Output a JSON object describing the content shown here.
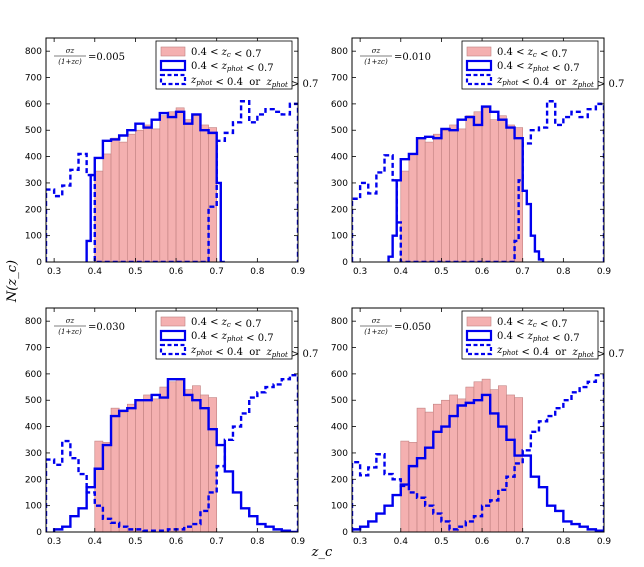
{
  "figure": {
    "ylabel": "N(z_c)",
    "xlabel": "z_c"
  },
  "colors": {
    "fill": "#f4b0b0",
    "fill_edge": "#c08080",
    "line": "#0000ee"
  },
  "chart_data": [
    {
      "type": "histogram",
      "annotation": "σz/(1+zc) = 0.005",
      "xlim": [
        0.28,
        0.9
      ],
      "ylim": [
        0,
        850
      ],
      "xticks": [
        "0.3",
        "0.4",
        "0.5",
        "0.6",
        "0.7",
        "0.8",
        "0.9"
      ],
      "yticks": [
        "0",
        "100",
        "200",
        "300",
        "400",
        "500",
        "600",
        "700",
        "800"
      ],
      "legend_placement": "top-right",
      "series": [
        {
          "name": "0.4 < z_c < 0.7",
          "style": "fill",
          "x_edges": [
            0.4,
            0.42,
            0.44,
            0.46,
            0.48,
            0.5,
            0.52,
            0.54,
            0.56,
            0.58,
            0.6,
            0.62,
            0.64,
            0.66,
            0.68,
            0.7
          ],
          "values": [
            345,
            410,
            470,
            455,
            485,
            500,
            520,
            505,
            555,
            570,
            585,
            540,
            555,
            520,
            510
          ]
        },
        {
          "name": "0.4 < z_phot < 0.7",
          "style": "solid",
          "x_edges": [
            0.38,
            0.39,
            0.4,
            0.42,
            0.44,
            0.46,
            0.48,
            0.5,
            0.52,
            0.54,
            0.56,
            0.58,
            0.6,
            0.62,
            0.64,
            0.66,
            0.68,
            0.7,
            0.71,
            0.72
          ],
          "values": [
            80,
            330,
            395,
            460,
            465,
            480,
            500,
            525,
            510,
            540,
            565,
            550,
            570,
            525,
            560,
            500,
            490,
            300,
            0
          ]
        },
        {
          "name": "z_phot < 0.4  or  z_phot > 0.7",
          "style": "dashed",
          "x_edges": [
            0.28,
            0.3,
            0.32,
            0.34,
            0.36,
            0.38,
            0.4,
            0.68,
            0.7,
            0.72,
            0.74,
            0.76,
            0.78,
            0.8,
            0.82,
            0.84,
            0.86,
            0.88,
            0.9
          ],
          "values": [
            275,
            250,
            290,
            350,
            410,
            330,
            0,
            210,
            460,
            490,
            530,
            610,
            530,
            560,
            580,
            570,
            560,
            600
          ]
        }
      ]
    },
    {
      "type": "histogram",
      "annotation": "σz/(1+zc) = 0.010",
      "xlim": [
        0.28,
        0.9
      ],
      "ylim": [
        0,
        850
      ],
      "xticks": [
        "0.3",
        "0.4",
        "0.5",
        "0.6",
        "0.7",
        "0.8",
        "0.9"
      ],
      "yticks": [
        "0",
        "100",
        "200",
        "300",
        "400",
        "500",
        "600",
        "700",
        "800"
      ],
      "legend_placement": "top-right",
      "series": [
        {
          "name": "0.4 < z_c < 0.7",
          "style": "fill",
          "x_edges": [
            0.4,
            0.42,
            0.44,
            0.46,
            0.48,
            0.5,
            0.52,
            0.54,
            0.56,
            0.58,
            0.6,
            0.62,
            0.64,
            0.66,
            0.68,
            0.7
          ],
          "values": [
            345,
            410,
            470,
            455,
            485,
            500,
            520,
            505,
            555,
            570,
            585,
            540,
            555,
            520,
            510
          ]
        },
        {
          "name": "0.4 < z_phot < 0.7",
          "style": "solid",
          "x_edges": [
            0.37,
            0.38,
            0.39,
            0.4,
            0.42,
            0.44,
            0.46,
            0.48,
            0.5,
            0.52,
            0.54,
            0.56,
            0.58,
            0.6,
            0.62,
            0.64,
            0.66,
            0.68,
            0.7,
            0.71,
            0.72,
            0.73,
            0.74,
            0.75
          ],
          "values": [
            20,
            100,
            310,
            390,
            410,
            470,
            475,
            470,
            505,
            500,
            540,
            550,
            520,
            590,
            570,
            540,
            510,
            470,
            270,
            220,
            100,
            40,
            10
          ]
        },
        {
          "name": "z_phot < 0.4  or  z_phot > 0.7",
          "style": "dashed",
          "x_edges": [
            0.28,
            0.3,
            0.32,
            0.34,
            0.36,
            0.38,
            0.39,
            0.4,
            0.68,
            0.69,
            0.7,
            0.72,
            0.74,
            0.76,
            0.78,
            0.8,
            0.82,
            0.84,
            0.86,
            0.88,
            0.9
          ],
          "values": [
            240,
            300,
            260,
            340,
            405,
            310,
            150,
            0,
            80,
            310,
            450,
            500,
            510,
            610,
            520,
            550,
            570,
            550,
            580,
            600
          ]
        }
      ]
    },
    {
      "type": "histogram",
      "annotation": "σz/(1+zc) = 0.030",
      "xlim": [
        0.28,
        0.9
      ],
      "ylim": [
        0,
        850
      ],
      "xticks": [
        "0.3",
        "0.4",
        "0.5",
        "0.6",
        "0.7",
        "0.8",
        "0.9"
      ],
      "yticks": [
        "0",
        "100",
        "200",
        "300",
        "400",
        "500",
        "600",
        "700",
        "800"
      ],
      "legend_placement": "top-right",
      "series": [
        {
          "name": "0.4 < z_c < 0.7",
          "style": "fill",
          "x_edges": [
            0.4,
            0.42,
            0.44,
            0.46,
            0.48,
            0.5,
            0.52,
            0.54,
            0.56,
            0.58,
            0.6,
            0.62,
            0.64,
            0.66,
            0.68,
            0.7
          ],
          "values": [
            345,
            340,
            470,
            455,
            485,
            500,
            520,
            505,
            550,
            570,
            580,
            540,
            555,
            520,
            510
          ]
        },
        {
          "name": "0.4 < z_phot < 0.7",
          "style": "solid",
          "x_edges": [
            0.3,
            0.32,
            0.34,
            0.36,
            0.38,
            0.4,
            0.42,
            0.44,
            0.46,
            0.48,
            0.5,
            0.52,
            0.54,
            0.56,
            0.58,
            0.6,
            0.62,
            0.64,
            0.66,
            0.68,
            0.7,
            0.72,
            0.74,
            0.76,
            0.78,
            0.8,
            0.82,
            0.84,
            0.86,
            0.88,
            0.9
          ],
          "values": [
            10,
            20,
            60,
            90,
            170,
            240,
            330,
            440,
            460,
            470,
            500,
            500,
            520,
            510,
            580,
            580,
            520,
            500,
            470,
            390,
            330,
            230,
            150,
            90,
            60,
            30,
            20,
            10,
            5,
            0
          ]
        },
        {
          "name": "z_phot < 0.4  or  z_phot > 0.7",
          "style": "dashed",
          "x_edges": [
            0.28,
            0.3,
            0.32,
            0.34,
            0.36,
            0.38,
            0.4,
            0.42,
            0.44,
            0.46,
            0.48,
            0.5,
            0.52,
            0.54,
            0.56,
            0.58,
            0.6,
            0.62,
            0.64,
            0.66,
            0.68,
            0.7,
            0.72,
            0.74,
            0.76,
            0.78,
            0.8,
            0.82,
            0.84,
            0.86,
            0.88,
            0.9
          ],
          "values": [
            275,
            255,
            345,
            280,
            220,
            150,
            100,
            50,
            35,
            20,
            10,
            10,
            5,
            5,
            5,
            10,
            10,
            20,
            30,
            80,
            150,
            250,
            350,
            400,
            450,
            510,
            530,
            550,
            560,
            580,
            595
          ]
        }
      ]
    },
    {
      "type": "histogram",
      "annotation": "σz/(1+zc) = 0.050",
      "xlim": [
        0.28,
        0.9
      ],
      "ylim": [
        0,
        850
      ],
      "xticks": [
        "0.3",
        "0.4",
        "0.5",
        "0.6",
        "0.7",
        "0.8",
        "0.9"
      ],
      "yticks": [
        "0",
        "100",
        "200",
        "300",
        "400",
        "500",
        "600",
        "700",
        "800"
      ],
      "legend_placement": "top-right",
      "series": [
        {
          "name": "0.4 < z_c < 0.7",
          "style": "fill",
          "x_edges": [
            0.4,
            0.42,
            0.44,
            0.46,
            0.48,
            0.5,
            0.52,
            0.54,
            0.56,
            0.58,
            0.6,
            0.62,
            0.64,
            0.66,
            0.68,
            0.7
          ],
          "values": [
            345,
            340,
            470,
            455,
            485,
            500,
            520,
            505,
            550,
            570,
            580,
            540,
            555,
            520,
            510
          ]
        },
        {
          "name": "0.4 < z_phot < 0.7",
          "style": "solid",
          "x_edges": [
            0.28,
            0.3,
            0.32,
            0.34,
            0.36,
            0.38,
            0.4,
            0.42,
            0.44,
            0.46,
            0.48,
            0.5,
            0.52,
            0.54,
            0.56,
            0.58,
            0.6,
            0.62,
            0.64,
            0.66,
            0.68,
            0.7,
            0.72,
            0.74,
            0.76,
            0.78,
            0.8,
            0.82,
            0.84,
            0.86,
            0.88,
            0.9
          ],
          "values": [
            10,
            20,
            40,
            70,
            100,
            140,
            180,
            250,
            280,
            320,
            380,
            400,
            440,
            480,
            490,
            500,
            520,
            450,
            400,
            350,
            290,
            290,
            210,
            170,
            100,
            80,
            40,
            30,
            20,
            10,
            5
          ]
        },
        {
          "name": "z_phot < 0.4  or  z_phot > 0.7",
          "style": "dashed",
          "x_edges": [
            0.28,
            0.3,
            0.32,
            0.34,
            0.36,
            0.38,
            0.4,
            0.42,
            0.44,
            0.46,
            0.48,
            0.5,
            0.52,
            0.54,
            0.56,
            0.58,
            0.6,
            0.62,
            0.64,
            0.66,
            0.68,
            0.7,
            0.72,
            0.74,
            0.76,
            0.78,
            0.8,
            0.82,
            0.84,
            0.86,
            0.88,
            0.9
          ],
          "values": [
            265,
            215,
            245,
            295,
            220,
            200,
            175,
            150,
            130,
            100,
            70,
            40,
            10,
            20,
            40,
            60,
            100,
            120,
            160,
            210,
            260,
            310,
            380,
            420,
            440,
            470,
            500,
            530,
            550,
            570,
            595
          ]
        }
      ]
    }
  ]
}
